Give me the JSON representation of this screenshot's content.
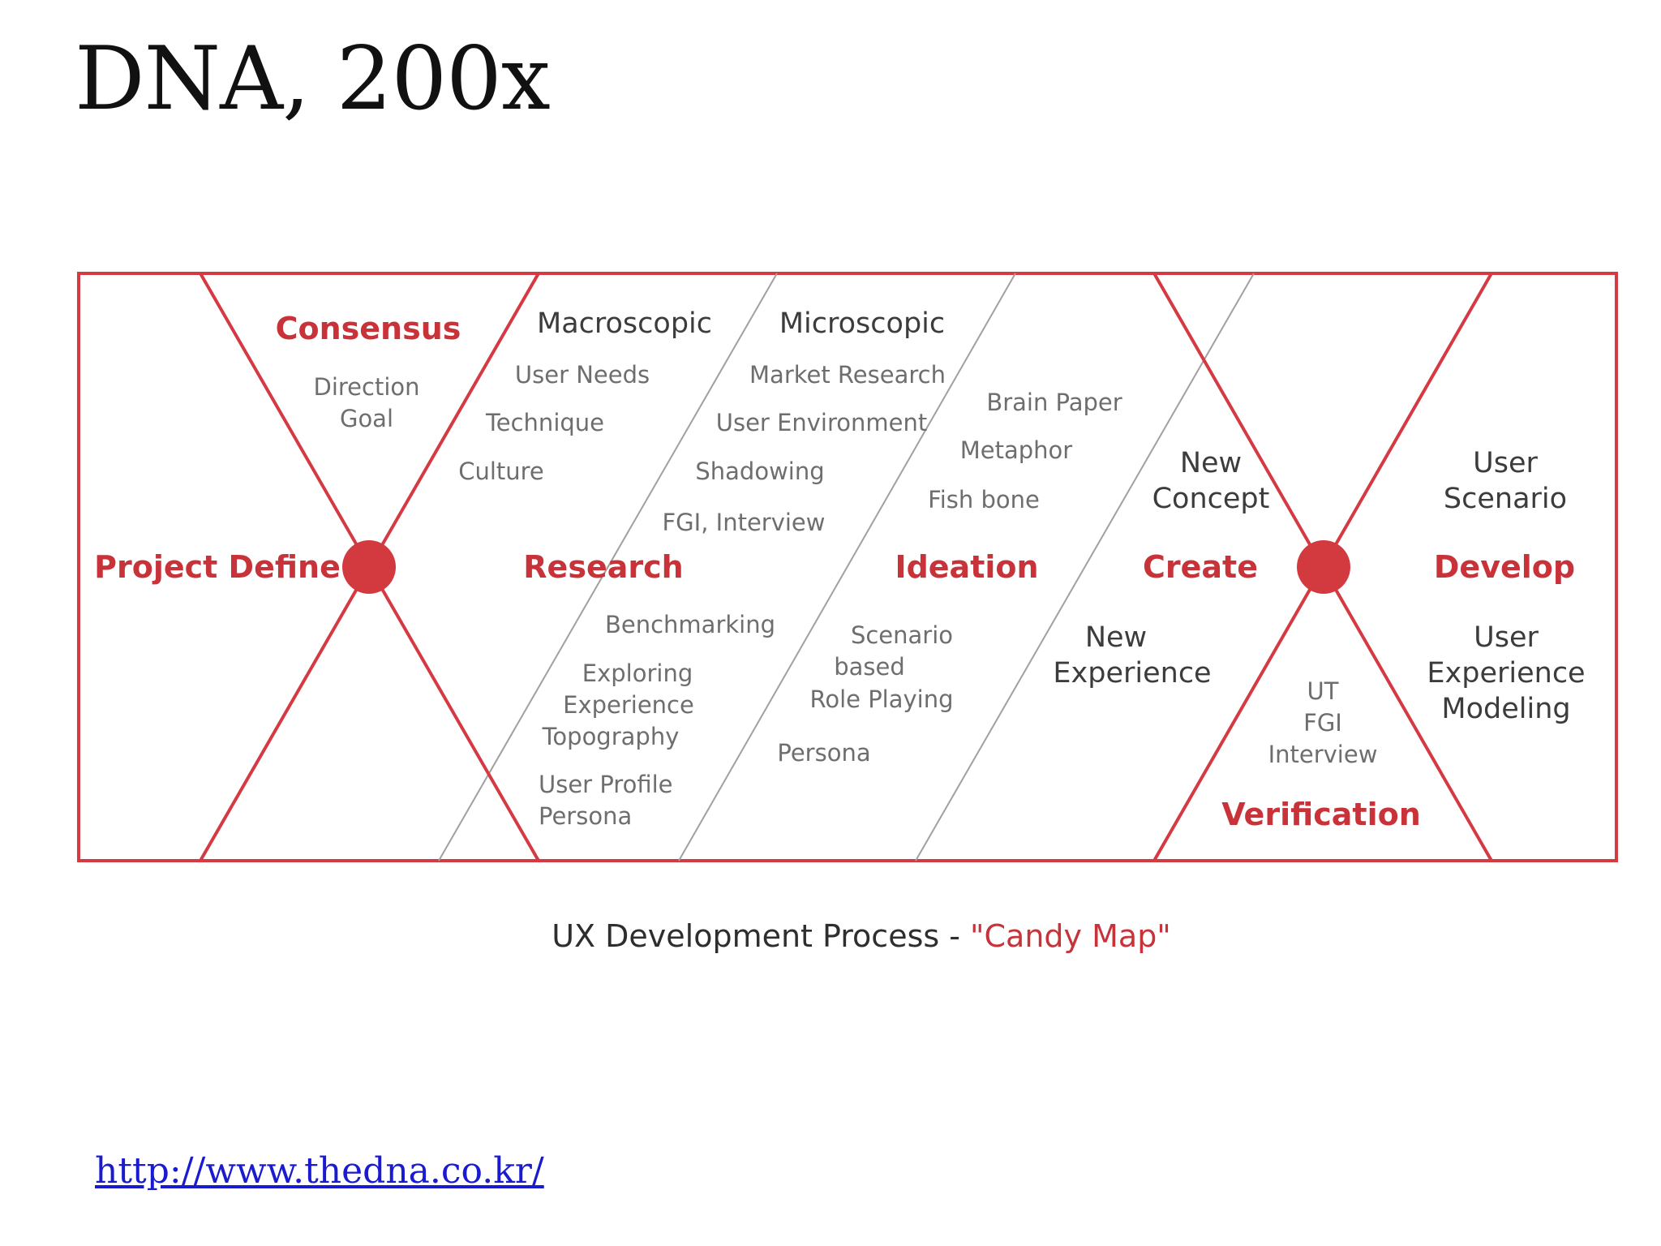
{
  "slide": {
    "title": "DNA, 200x"
  },
  "diagram": {
    "stages": {
      "project_define": "Project Define",
      "consensus": "Consensus",
      "research": "Research",
      "ideation": "Ideation",
      "create": "Create",
      "verification": "Verification",
      "develop": "Develop"
    },
    "consensus_items": [
      "Direction",
      "Goal"
    ],
    "macroscopic": {
      "heading": "Macroscopic",
      "items": [
        "User Needs",
        "Technique",
        "Culture"
      ]
    },
    "microscopic": {
      "heading": "Microscopic",
      "items": [
        "Market Research",
        "User Environment",
        "Shadowing",
        "FGI, Interview"
      ]
    },
    "research_lower": {
      "benchmarking": "Benchmarking",
      "exploring": [
        "Exploring",
        "Experience",
        "Topography"
      ],
      "user_profile": [
        "User Profile",
        "Persona"
      ]
    },
    "ideation_upper": [
      "Brain Paper",
      "Metaphor",
      "Fish bone"
    ],
    "ideation_lower": {
      "scenario": [
        "Scenario",
        "based",
        "Role Playing"
      ],
      "persona": "Persona"
    },
    "create_items": {
      "new_concept": [
        "New",
        "Concept"
      ],
      "new_experience": [
        "New",
        "Experience"
      ]
    },
    "verification_items": [
      "UT",
      "FGI",
      "Interview"
    ],
    "develop_items": {
      "user_scenario": [
        "User",
        "Scenario"
      ],
      "ux_modeling": [
        "User",
        "Experience",
        "Modeling"
      ]
    },
    "caption": {
      "prefix": "UX Development Process - ",
      "highlight": "\"Candy Map\""
    },
    "colors": {
      "accent": "#c8333a",
      "dark_text": "#3c3c3c",
      "light_text": "#6e6e6e",
      "divider": "#9e9e9e"
    }
  },
  "footer": {
    "link": "http://www.thedna.co.kr/"
  }
}
